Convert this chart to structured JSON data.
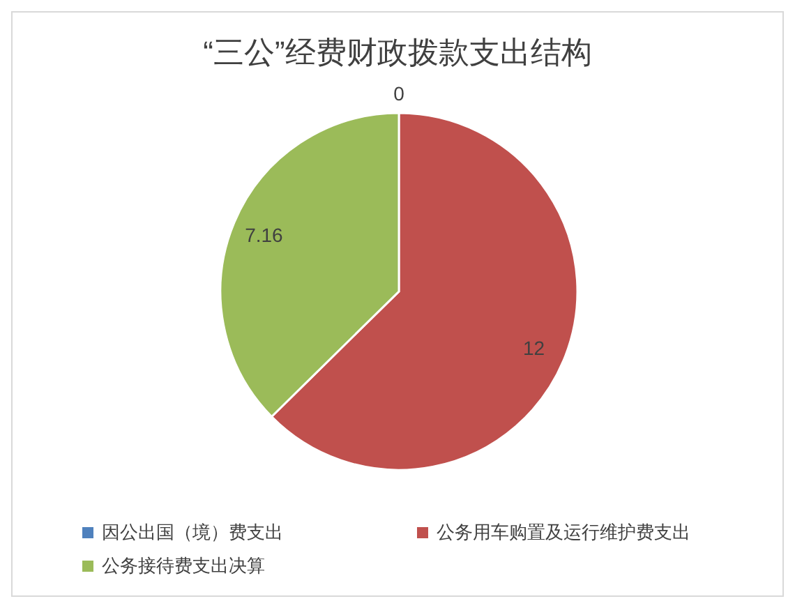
{
  "chart_data": {
    "type": "pie",
    "title": "“三公”经费财政拨款支出结构",
    "categories": [
      "因公出国（境）费支出",
      "公务用车购置及运行维护费支出",
      "公务接待费支出决算"
    ],
    "values": [
      0,
      12,
      7.16
    ],
    "colors": [
      "#4f81bd",
      "#c0504d",
      "#9bbb59"
    ],
    "value_labels": [
      "0",
      "12",
      "7.16"
    ],
    "legend": "bottom"
  }
}
